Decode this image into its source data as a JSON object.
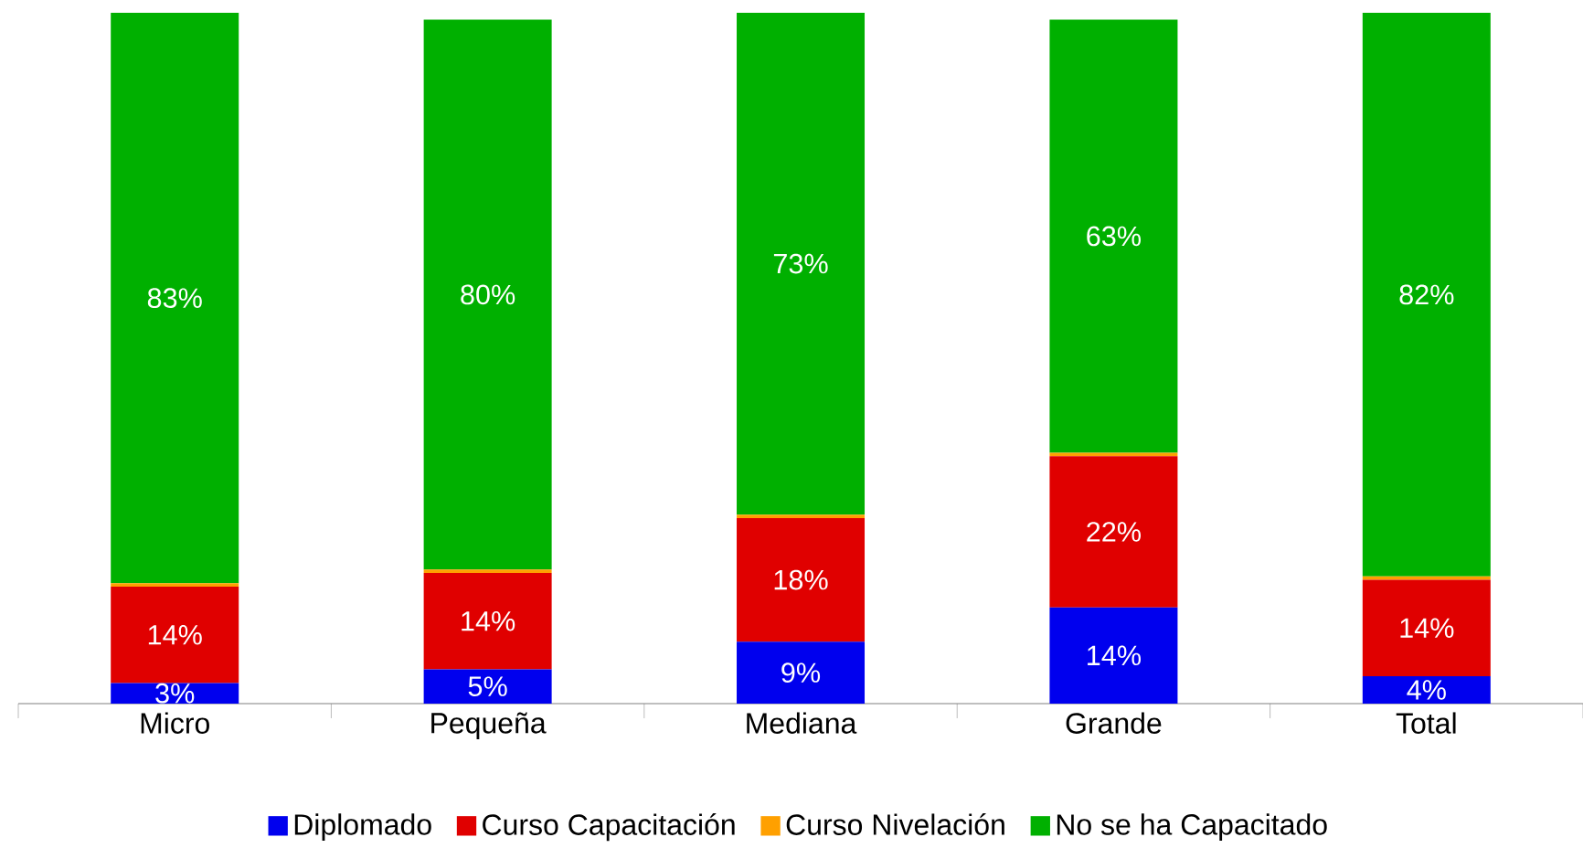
{
  "chart_data": {
    "type": "bar",
    "stacked": true,
    "categories": [
      "Micro",
      "Pequeña",
      "Mediana",
      "Grande",
      "Total"
    ],
    "series": [
      {
        "name": "Diplomado",
        "color": "#0000ee",
        "values": [
          3,
          5,
          9,
          14,
          4
        ],
        "value_labels": [
          "3%",
          "5%",
          "9%",
          "14%",
          "4%"
        ]
      },
      {
        "name": "Curso Capacitación",
        "color": "#e00000",
        "values": [
          14,
          14,
          18,
          22,
          14
        ],
        "value_labels": [
          "14%",
          "14%",
          "18%",
          "22%",
          "14%"
        ]
      },
      {
        "name": "Curso Nivelación",
        "color": "#ffa000",
        "values": [
          0.5,
          0.5,
          0.5,
          0.5,
          0.5
        ],
        "value_labels": [
          null,
          null,
          null,
          null,
          null
        ]
      },
      {
        "name": "No se ha Capacitado",
        "color": "#00b000",
        "values": [
          83,
          80,
          73,
          63,
          82
        ],
        "value_labels": [
          "83%",
          "80%",
          "73%",
          "63%",
          "82%"
        ]
      }
    ],
    "legend": "bottom"
  }
}
